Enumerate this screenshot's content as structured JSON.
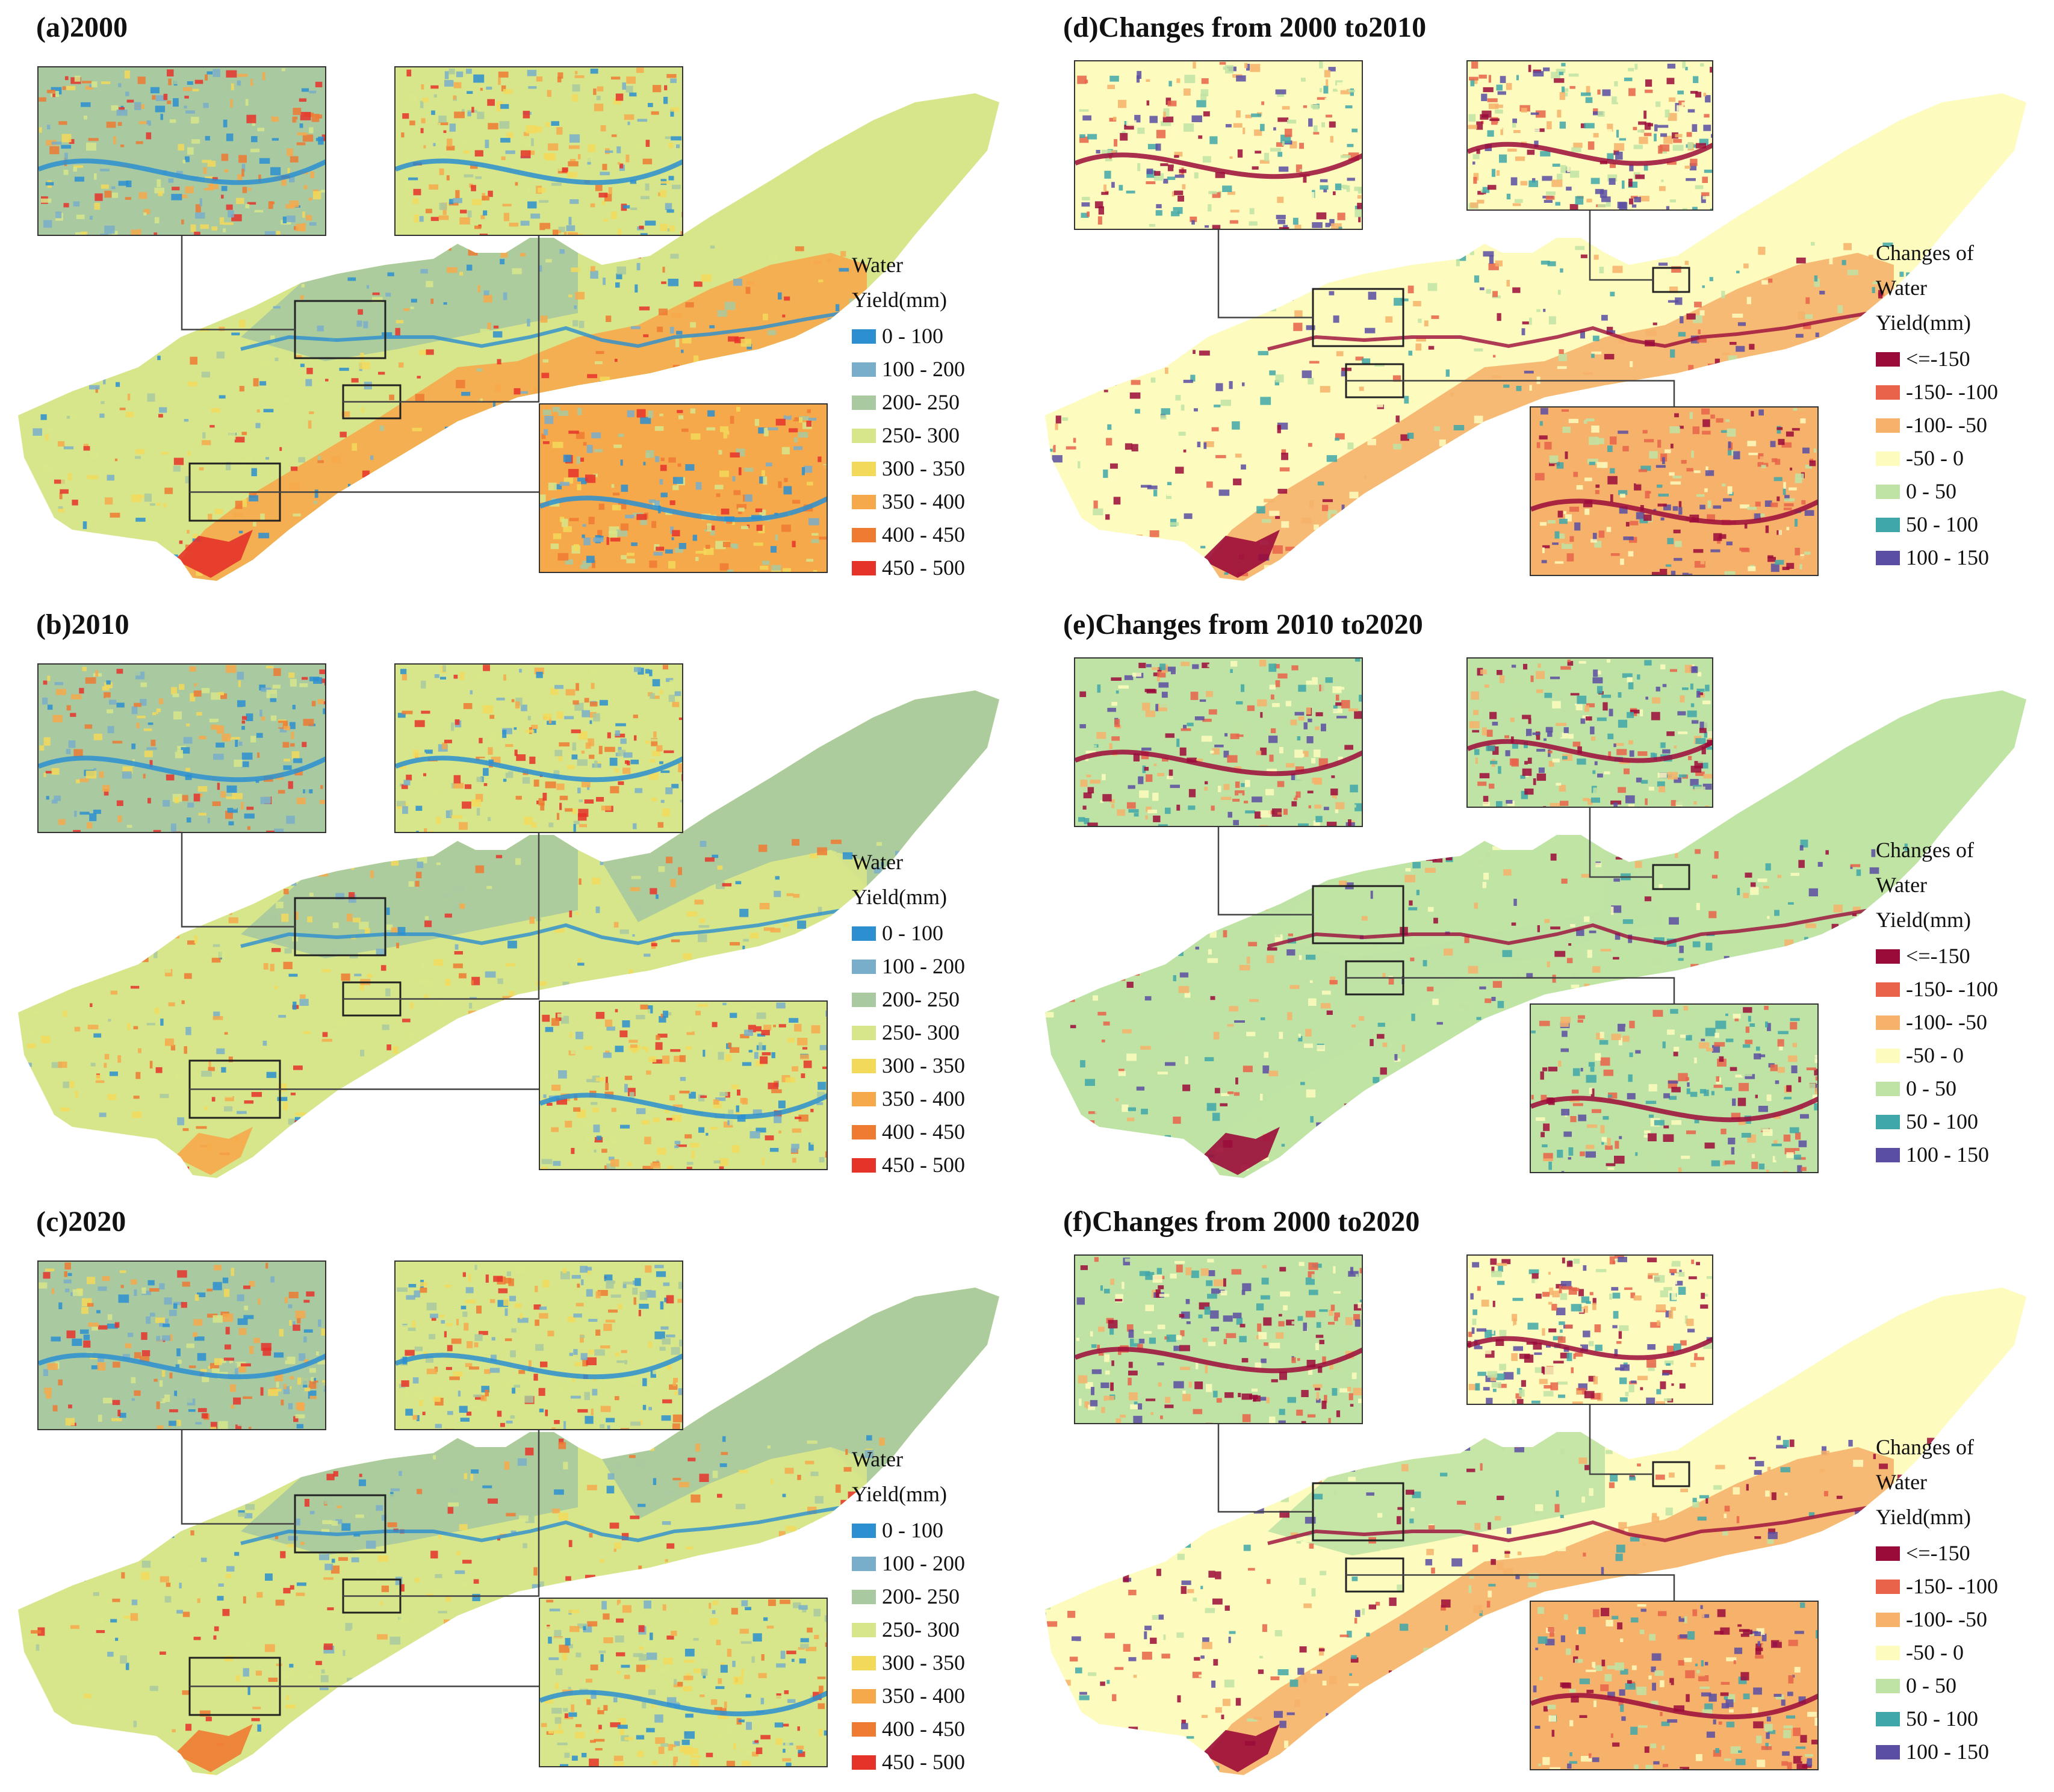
{
  "legends": {
    "yield": {
      "title_lines": [
        "Water",
        "Yield(mm)"
      ],
      "classes": [
        {
          "label": "0 - 100",
          "color": "#2b8fd0"
        },
        {
          "label": "100 - 200",
          "color": "#79aeca"
        },
        {
          "label": "200- 250",
          "color": "#a9c9a0"
        },
        {
          "label": "250- 300",
          "color": "#d7e68a"
        },
        {
          "label": "300 - 350",
          "color": "#f3d95a"
        },
        {
          "label": "350 - 400",
          "color": "#f6a94b"
        },
        {
          "label": "400 - 450",
          "color": "#ef7a32"
        },
        {
          "label": "450 - 500",
          "color": "#e6332a"
        }
      ]
    },
    "change": {
      "title_lines": [
        "Changes of",
        "Water",
        "Yield(mm)"
      ],
      "classes": [
        {
          "label": "<=-150",
          "color": "#9b0b3a"
        },
        {
          "label": "-150- -100",
          "color": "#e8634a"
        },
        {
          "label": "-100- -50",
          "color": "#f6b26b"
        },
        {
          "label": "-50 - 0",
          "color": "#fdfbbd"
        },
        {
          "label": "0 - 50",
          "color": "#bfe3a4"
        },
        {
          "label": "50 - 100",
          "color": "#3fa7a9"
        },
        {
          "label": "100 - 150",
          "color": "#5a4ea3"
        }
      ]
    }
  },
  "panels": [
    {
      "id": "a",
      "title": "(a)2000",
      "legend": "yield",
      "base": "#d7e68a",
      "north": "#a9c9a0",
      "southeast": "#f6a94b",
      "hot": "#e6332a",
      "east": "#d7e68a"
    },
    {
      "id": "b",
      "title": "(b)2010",
      "legend": "yield",
      "base": "#d7e68a",
      "north": "#a9c9a0",
      "southeast": "#d7e68a",
      "hot": "#f6a94b",
      "east": "#a9c9a0"
    },
    {
      "id": "c",
      "title": "(c)2020",
      "legend": "yield",
      "base": "#d7e68a",
      "north": "#a9c9a0",
      "southeast": "#d7e68a",
      "hot": "#ef7a32",
      "east": "#a9c9a0"
    },
    {
      "id": "d",
      "title": "(d)Changes from 2000 to2010",
      "legend": "change",
      "base": "#fdfbbd",
      "north": "#fdfbbd",
      "southeast": "#f6b26b",
      "hot": "#9b0b3a",
      "east": "#fdfbbd"
    },
    {
      "id": "e",
      "title": "(e)Changes from 2010 to2020",
      "legend": "change",
      "base": "#bfe3a4",
      "north": "#bfe3a4",
      "southeast": "#bfe3a4",
      "hot": "#9b0b3a",
      "east": "#bfe3a4"
    },
    {
      "id": "f",
      "title": "(f)Changes from 2000 to2020",
      "legend": "change",
      "base": "#fdfbbd",
      "north": "#bfe3a4",
      "southeast": "#f6b26b",
      "hot": "#9b0b3a",
      "east": "#fdfbbd"
    }
  ]
}
